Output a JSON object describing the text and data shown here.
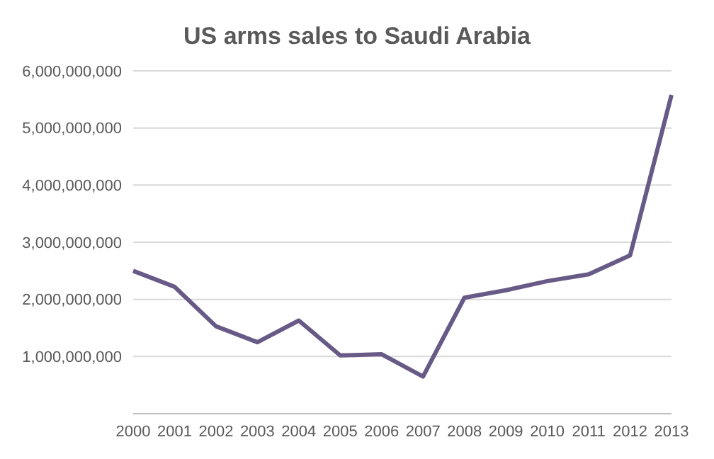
{
  "chart_data": {
    "type": "line",
    "title": "US arms sales to Saudi Arabia",
    "categories": [
      "2000",
      "2001",
      "2002",
      "2003",
      "2004",
      "2005",
      "2006",
      "2007",
      "2008",
      "2009",
      "2010",
      "2011",
      "2012",
      "2013"
    ],
    "series": [
      {
        "color": "#675a86",
        "values": [
          2500000000,
          2220000000,
          1530000000,
          1250000000,
          1630000000,
          1020000000,
          1040000000,
          650000000,
          2030000000,
          2160000000,
          2320000000,
          2440000000,
          2770000000,
          5580000000
        ]
      }
    ],
    "ylim": [
      0,
      6000000000
    ],
    "yticks": [
      {
        "value": 0,
        "label": null
      },
      {
        "value": 1000000000,
        "label": "1,000,000,000"
      },
      {
        "value": 2000000000,
        "label": "2,000,000,000"
      },
      {
        "value": 3000000000,
        "label": "3,000,000,000"
      },
      {
        "value": 4000000000,
        "label": "4,000,000,000"
      },
      {
        "value": 5000000000,
        "label": "5,000,000,000"
      },
      {
        "value": 6000000000,
        "label": "6,000,000,000"
      }
    ],
    "grid": "y",
    "legend": false,
    "marker": "none",
    "line_style": "solid"
  }
}
